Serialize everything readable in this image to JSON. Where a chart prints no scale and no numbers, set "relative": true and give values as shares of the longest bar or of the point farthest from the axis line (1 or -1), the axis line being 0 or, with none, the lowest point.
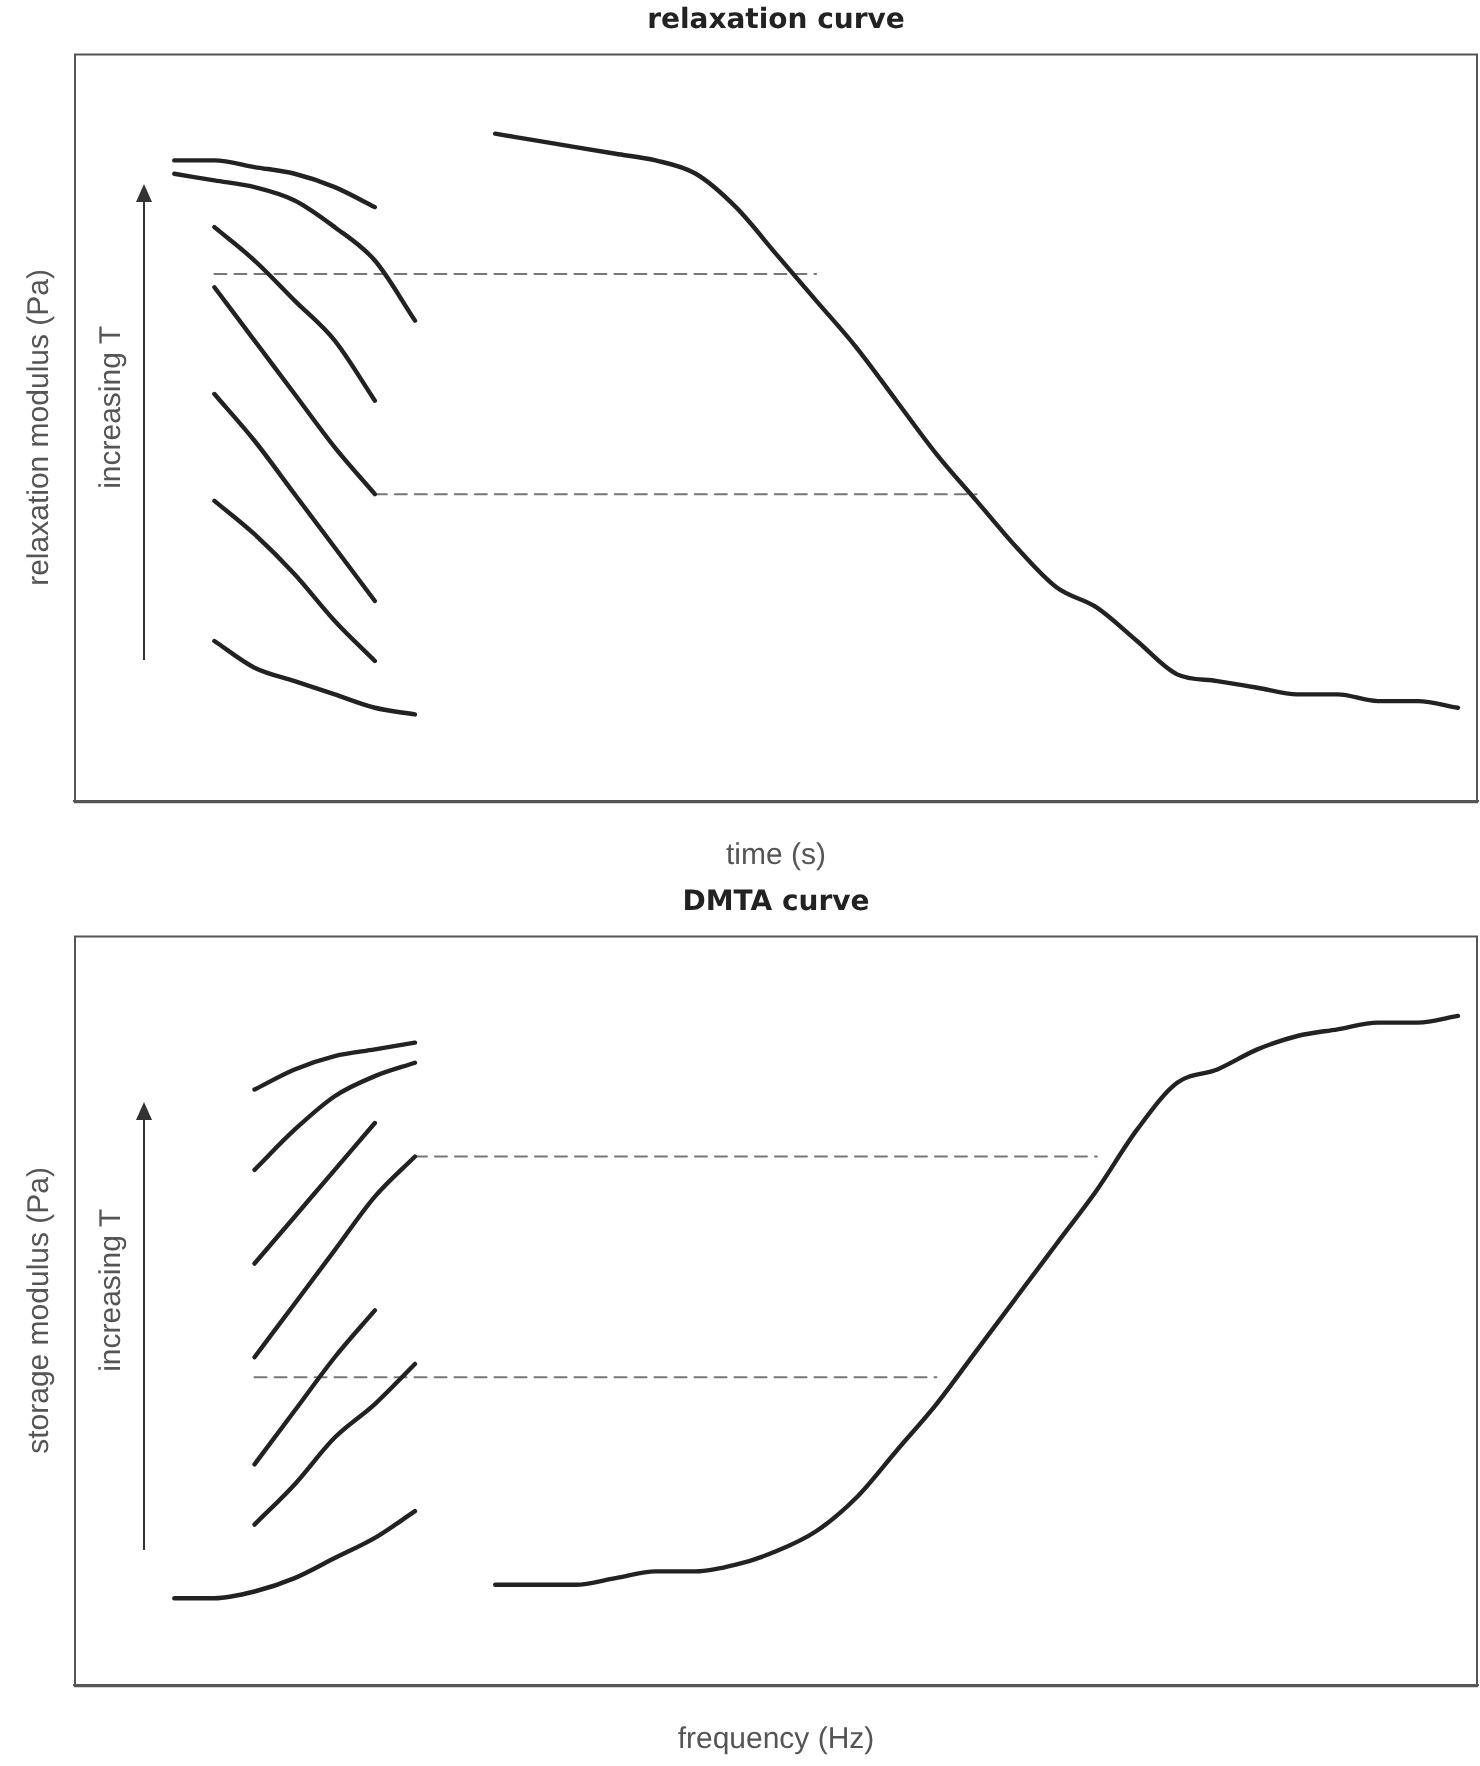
{
  "chart_data": [
    {
      "type": "line",
      "title": "relaxation curve",
      "xlabel": "time (s)",
      "ylabel": "relaxation modulus (Pa)",
      "relative": true,
      "annotations": [
        "increasing T"
      ],
      "categories": [
        null,
        null,
        null,
        null,
        null,
        null,
        null,
        null,
        null,
        null,
        null,
        null,
        null,
        null,
        null,
        null,
        null,
        null,
        null,
        null,
        null,
        null,
        null,
        null,
        null,
        null,
        null,
        null,
        null,
        null,
        null,
        null,
        null,
        null,
        null
      ],
      "series": [
        {
          "color": "#222222",
          "values": [
            null,
            null,
            0.96,
            0.96,
            0.95,
            0.94,
            0.92,
            0.89,
            null,
            null,
            null,
            null,
            null,
            null,
            null,
            null,
            null,
            null,
            null,
            null,
            null,
            null,
            null,
            null,
            null,
            null,
            null,
            null,
            null,
            null,
            null,
            null,
            null,
            null,
            null
          ]
        },
        {
          "color": "#222222",
          "values": [
            null,
            null,
            0.94,
            0.93,
            0.92,
            0.9,
            0.86,
            0.81,
            0.72,
            null,
            null,
            null,
            null,
            null,
            null,
            null,
            null,
            null,
            null,
            null,
            null,
            null,
            null,
            null,
            null,
            null,
            null,
            null,
            null,
            null,
            null,
            null,
            null,
            null,
            null
          ]
        },
        {
          "color": "#222222",
          "values": [
            null,
            null,
            null,
            0.86,
            0.81,
            0.75,
            0.69,
            0.6,
            null,
            null,
            null,
            null,
            null,
            null,
            null,
            null,
            null,
            null,
            null,
            null,
            null,
            null,
            null,
            null,
            null,
            null,
            null,
            null,
            null,
            null,
            null,
            null,
            null,
            null,
            null
          ]
        },
        {
          "color": "#222222",
          "values": [
            null,
            null,
            null,
            0.77,
            0.69,
            0.61,
            0.53,
            0.46,
            null,
            null,
            null,
            null,
            null,
            null,
            null,
            null,
            null,
            null,
            null,
            null,
            null,
            null,
            null,
            null,
            null,
            null,
            null,
            null,
            null,
            null,
            null,
            null,
            null,
            null,
            null
          ]
        },
        {
          "color": "#222222",
          "values": [
            null,
            null,
            null,
            0.61,
            0.54,
            0.46,
            0.38,
            0.3,
            null,
            null,
            null,
            null,
            null,
            null,
            null,
            null,
            null,
            null,
            null,
            null,
            null,
            null,
            null,
            null,
            null,
            null,
            null,
            null,
            null,
            null,
            null,
            null,
            null,
            null,
            null
          ]
        },
        {
          "color": "#222222",
          "values": [
            null,
            null,
            null,
            0.45,
            0.4,
            0.34,
            0.27,
            0.21,
            null,
            null,
            null,
            null,
            null,
            null,
            null,
            null,
            null,
            null,
            null,
            null,
            null,
            null,
            null,
            null,
            null,
            null,
            null,
            null,
            null,
            null,
            null,
            null,
            null,
            null,
            null
          ]
        },
        {
          "color": "#222222",
          "values": [
            null,
            null,
            null,
            0.24,
            0.2,
            0.18,
            0.16,
            0.14,
            0.13,
            null,
            null,
            null,
            null,
            null,
            null,
            null,
            null,
            null,
            null,
            null,
            null,
            null,
            null,
            null,
            null,
            null,
            null,
            null,
            null,
            null,
            null,
            null,
            null,
            null,
            null
          ]
        },
        {
          "color": "#222222",
          "values": [
            null,
            null,
            null,
            null,
            null,
            null,
            null,
            null,
            null,
            null,
            1.0,
            0.99,
            0.98,
            0.97,
            0.96,
            0.94,
            0.89,
            0.82,
            0.75,
            0.68,
            0.6,
            0.52,
            0.45,
            0.38,
            0.32,
            0.29,
            0.24,
            0.19,
            0.18,
            0.17,
            0.16,
            0.16,
            0.15,
            0.15,
            0.14
          ]
        },
        {
          "color": "#777777",
          "line_style": "dashed",
          "values": [
            null,
            null,
            null,
            0.79,
            0.79,
            0.79,
            0.79,
            0.79,
            0.79,
            0.79,
            0.79,
            0.79,
            0.79,
            0.79,
            0.79,
            0.79,
            0.79,
            0.79,
            0.79,
            null,
            null,
            null,
            null,
            null,
            null,
            null,
            null,
            null,
            null,
            null,
            null,
            null,
            null,
            null,
            null
          ]
        },
        {
          "color": "#777777",
          "line_style": "dashed",
          "values": [
            null,
            null,
            null,
            null,
            null,
            null,
            null,
            0.46,
            0.46,
            0.46,
            0.46,
            0.46,
            0.46,
            0.46,
            0.46,
            0.46,
            0.46,
            0.46,
            0.46,
            0.46,
            0.46,
            0.46,
            0.46,
            null,
            null,
            null,
            null,
            null,
            null,
            null,
            null,
            null,
            null,
            null,
            null
          ]
        }
      ]
    },
    {
      "type": "line",
      "title": "DMTA curve",
      "xlabel": "frequency (Hz)",
      "ylabel": "storage modulus (Pa)",
      "relative": true,
      "annotations": [
        "increasing T"
      ],
      "categories": [
        null,
        null,
        null,
        null,
        null,
        null,
        null,
        null,
        null,
        null,
        null,
        null,
        null,
        null,
        null,
        null,
        null,
        null,
        null,
        null,
        null,
        null,
        null,
        null,
        null,
        null,
        null,
        null,
        null,
        null,
        null,
        null,
        null,
        null,
        null
      ],
      "series": [
        {
          "color": "#222222",
          "values": [
            null,
            null,
            null,
            null,
            0.89,
            0.92,
            0.94,
            0.95,
            0.96,
            null,
            null,
            null,
            null,
            null,
            null,
            null,
            null,
            null,
            null,
            null,
            null,
            null,
            null,
            null,
            null,
            null,
            null,
            null,
            null,
            null,
            null,
            null,
            null,
            null,
            null
          ]
        },
        {
          "color": "#222222",
          "values": [
            null,
            null,
            null,
            null,
            0.77,
            0.83,
            0.88,
            0.91,
            0.93,
            null,
            null,
            null,
            null,
            null,
            null,
            null,
            null,
            null,
            null,
            null,
            null,
            null,
            null,
            null,
            null,
            null,
            null,
            null,
            null,
            null,
            null,
            null,
            null,
            null,
            null
          ]
        },
        {
          "color": "#222222",
          "values": [
            null,
            null,
            null,
            null,
            0.63,
            0.7,
            0.77,
            0.84,
            null,
            null,
            null,
            null,
            null,
            null,
            null,
            null,
            null,
            null,
            null,
            null,
            null,
            null,
            null,
            null,
            null,
            null,
            null,
            null,
            null,
            null,
            null,
            null,
            null,
            null,
            null
          ]
        },
        {
          "color": "#222222",
          "values": [
            null,
            null,
            null,
            null,
            0.49,
            0.57,
            0.65,
            0.73,
            0.79,
            null,
            null,
            null,
            null,
            null,
            null,
            null,
            null,
            null,
            null,
            null,
            null,
            null,
            null,
            null,
            null,
            null,
            null,
            null,
            null,
            null,
            null,
            null,
            null,
            null,
            null
          ]
        },
        {
          "color": "#222222",
          "values": [
            null,
            null,
            null,
            null,
            0.33,
            0.41,
            0.49,
            0.56,
            null,
            null,
            null,
            null,
            null,
            null,
            null,
            null,
            null,
            null,
            null,
            null,
            null,
            null,
            null,
            null,
            null,
            null,
            null,
            null,
            null,
            null,
            null,
            null,
            null,
            null,
            null
          ]
        },
        {
          "color": "#222222",
          "values": [
            null,
            null,
            null,
            null,
            0.24,
            0.3,
            0.37,
            0.42,
            0.48,
            null,
            null,
            null,
            null,
            null,
            null,
            null,
            null,
            null,
            null,
            null,
            null,
            null,
            null,
            null,
            null,
            null,
            null,
            null,
            null,
            null,
            null,
            null,
            null,
            null,
            null
          ]
        },
        {
          "color": "#222222",
          "values": [
            null,
            null,
            0.13,
            0.13,
            0.14,
            0.16,
            0.19,
            0.22,
            0.26,
            null,
            null,
            null,
            null,
            null,
            null,
            null,
            null,
            null,
            null,
            null,
            null,
            null,
            null,
            null,
            null,
            null,
            null,
            null,
            null,
            null,
            null,
            null,
            null,
            null,
            null
          ]
        },
        {
          "color": "#222222",
          "values": [
            null,
            null,
            null,
            null,
            null,
            null,
            null,
            null,
            null,
            null,
            0.15,
            0.15,
            0.15,
            0.16,
            0.17,
            0.17,
            0.18,
            0.2,
            0.23,
            0.28,
            0.35,
            0.42,
            0.5,
            0.58,
            0.66,
            0.74,
            0.83,
            0.9,
            0.92,
            0.95,
            0.97,
            0.98,
            0.99,
            0.99,
            1.0
          ]
        },
        {
          "color": "#777777",
          "line_style": "dashed",
          "values": [
            null,
            null,
            null,
            null,
            null,
            null,
            null,
            null,
            0.79,
            0.79,
            0.79,
            0.79,
            0.79,
            0.79,
            0.79,
            0.79,
            0.79,
            0.79,
            0.79,
            0.79,
            0.79,
            0.79,
            0.79,
            0.79,
            0.79,
            0.79,
            null,
            null,
            null,
            null,
            null,
            null,
            null,
            null,
            null
          ]
        },
        {
          "color": "#777777",
          "line_style": "dashed",
          "values": [
            null,
            null,
            null,
            null,
            0.46,
            0.46,
            0.46,
            0.46,
            0.46,
            0.46,
            0.46,
            0.46,
            0.46,
            0.46,
            0.46,
            0.46,
            0.46,
            0.46,
            0.46,
            0.46,
            0.46,
            0.46,
            null,
            null,
            null,
            null,
            null,
            null,
            null,
            null,
            null,
            null,
            null,
            null,
            null
          ]
        }
      ]
    }
  ]
}
